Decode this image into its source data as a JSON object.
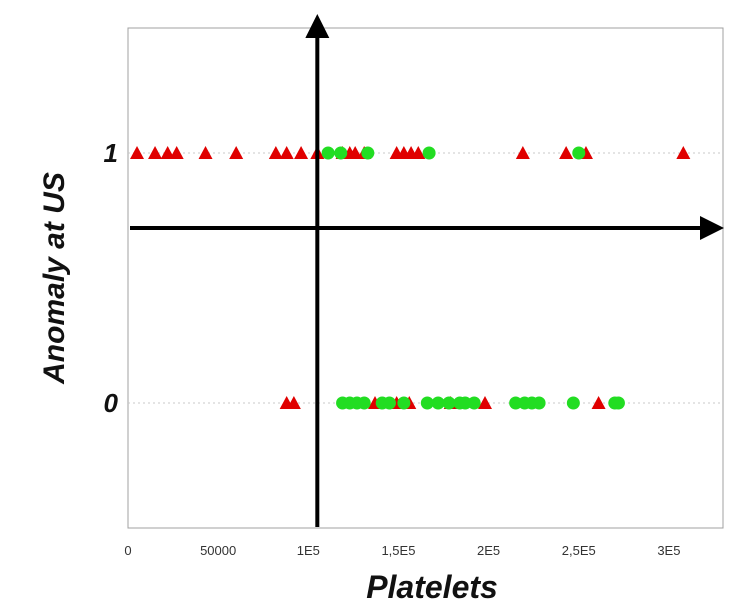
{
  "chart_data": {
    "type": "scatter",
    "title": "",
    "xlabel": "Platelets",
    "ylabel": "Anomaly at US",
    "xlim": [
      0,
      330000
    ],
    "ylim": [
      -0.5,
      1.5
    ],
    "x_ticks": [
      {
        "value": 0,
        "label": "0"
      },
      {
        "value": 50000,
        "label": "50000"
      },
      {
        "value": 100000,
        "label": "1E5"
      },
      {
        "value": 150000,
        "label": "1,5E5"
      },
      {
        "value": 200000,
        "label": "2E5"
      },
      {
        "value": 250000,
        "label": "2,5E5"
      },
      {
        "value": 300000,
        "label": "3E5"
      }
    ],
    "y_ticks": [
      {
        "value": 0,
        "label": "0"
      },
      {
        "value": 1,
        "label": "1"
      }
    ],
    "grid": "dotted horizontal lines at y = 0 and y = 1",
    "colors": {
      "red_triangle": "#e00000",
      "green_circle": "#22dd22",
      "arrow": "#000000",
      "frame": "#a0a0a0"
    },
    "series": [
      {
        "marker": "triangle",
        "color": "#e00000",
        "points": [
          [
            5000,
            1
          ],
          [
            15000,
            1
          ],
          [
            22000,
            1
          ],
          [
            27000,
            1
          ],
          [
            43000,
            1
          ],
          [
            60000,
            1
          ],
          [
            82000,
            1
          ],
          [
            88000,
            1
          ],
          [
            96000,
            1
          ],
          [
            105000,
            1
          ],
          [
            119000,
            1
          ],
          [
            123000,
            1
          ],
          [
            126000,
            1
          ],
          [
            131000,
            1
          ],
          [
            149000,
            1
          ],
          [
            153000,
            1
          ],
          [
            157000,
            1
          ],
          [
            161000,
            1
          ],
          [
            219000,
            1
          ],
          [
            243000,
            1
          ],
          [
            254000,
            1
          ],
          [
            308000,
            1
          ],
          [
            88000,
            0
          ],
          [
            92000,
            0
          ],
          [
            137000,
            0
          ],
          [
            149000,
            0
          ],
          [
            156000,
            0
          ],
          [
            179000,
            0
          ],
          [
            198000,
            0
          ],
          [
            261000,
            0
          ]
        ]
      },
      {
        "marker": "circle",
        "color": "#22dd22",
        "points": [
          [
            111000,
            1
          ],
          [
            118000,
            1
          ],
          [
            133000,
            1
          ],
          [
            167000,
            1
          ],
          [
            250000,
            1
          ],
          [
            119000,
            0
          ],
          [
            123000,
            0
          ],
          [
            127000,
            0
          ],
          [
            131000,
            0
          ],
          [
            141000,
            0
          ],
          [
            145000,
            0
          ],
          [
            153000,
            0
          ],
          [
            166000,
            0
          ],
          [
            172000,
            0
          ],
          [
            178000,
            0
          ],
          [
            184000,
            0
          ],
          [
            187000,
            0
          ],
          [
            192000,
            0
          ],
          [
            215000,
            0
          ],
          [
            220000,
            0
          ],
          [
            224000,
            0
          ],
          [
            228000,
            0
          ],
          [
            247000,
            0
          ],
          [
            270000,
            0
          ],
          [
            272000,
            0
          ]
        ]
      }
    ],
    "annotations": [
      {
        "kind": "vertical-arrow",
        "x": 105000
      },
      {
        "kind": "horizontal-arrow",
        "y": 0.7
      }
    ]
  }
}
